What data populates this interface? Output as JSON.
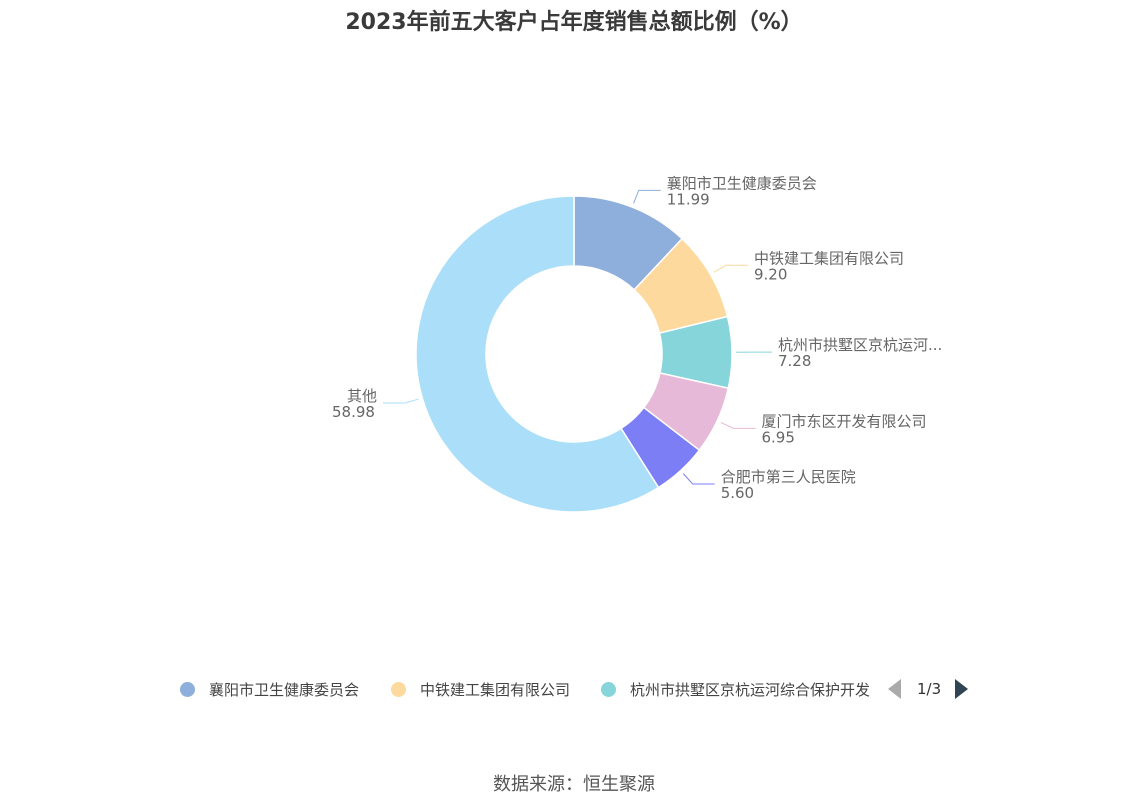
{
  "title": "2023年前五大客户占年度销售总额比例（%）",
  "source": "数据来源：恒生聚源",
  "chart_data": {
    "type": "pie",
    "variant": "donut",
    "title": "2023年前五大客户占年度销售总额比例（%）",
    "slices": [
      {
        "name": "襄阳市卫生健康委员会",
        "label": "襄阳市卫生健康委员会",
        "value": 11.99,
        "value_text": "11.99",
        "color": "#8eaedc"
      },
      {
        "name": "中铁建工集团有限公司",
        "label": "中铁建工集团有限公司",
        "value": 9.2,
        "value_text": "9.20",
        "color": "#fdd99d"
      },
      {
        "name": "杭州市拱墅区京杭运河综合保护开发",
        "label": "杭州市拱墅区京杭运河...",
        "value": 7.28,
        "value_text": "7.28",
        "color": "#86d5da"
      },
      {
        "name": "厦门市东区开发有限公司",
        "label": "厦门市东区开发有限公司",
        "value": 6.95,
        "value_text": "6.95",
        "color": "#e6b9d8"
      },
      {
        "name": "合肥市第三人民医院",
        "label": "合肥市第三人民医院",
        "value": 5.6,
        "value_text": "5.60",
        "color": "#7c7ef6"
      },
      {
        "name": "其他",
        "label": "其他",
        "value": 58.98,
        "value_text": "58.98",
        "color": "#abdff9"
      }
    ]
  },
  "legend": {
    "items": [
      {
        "label": "襄阳市卫生健康委员会",
        "color": "#8eaedc"
      },
      {
        "label": "中铁建工集团有限公司",
        "color": "#fdd99d"
      },
      {
        "label": "杭州市拱墅区京杭运河综合保护开发",
        "color": "#86d5da"
      }
    ],
    "page_text": "1/3"
  }
}
